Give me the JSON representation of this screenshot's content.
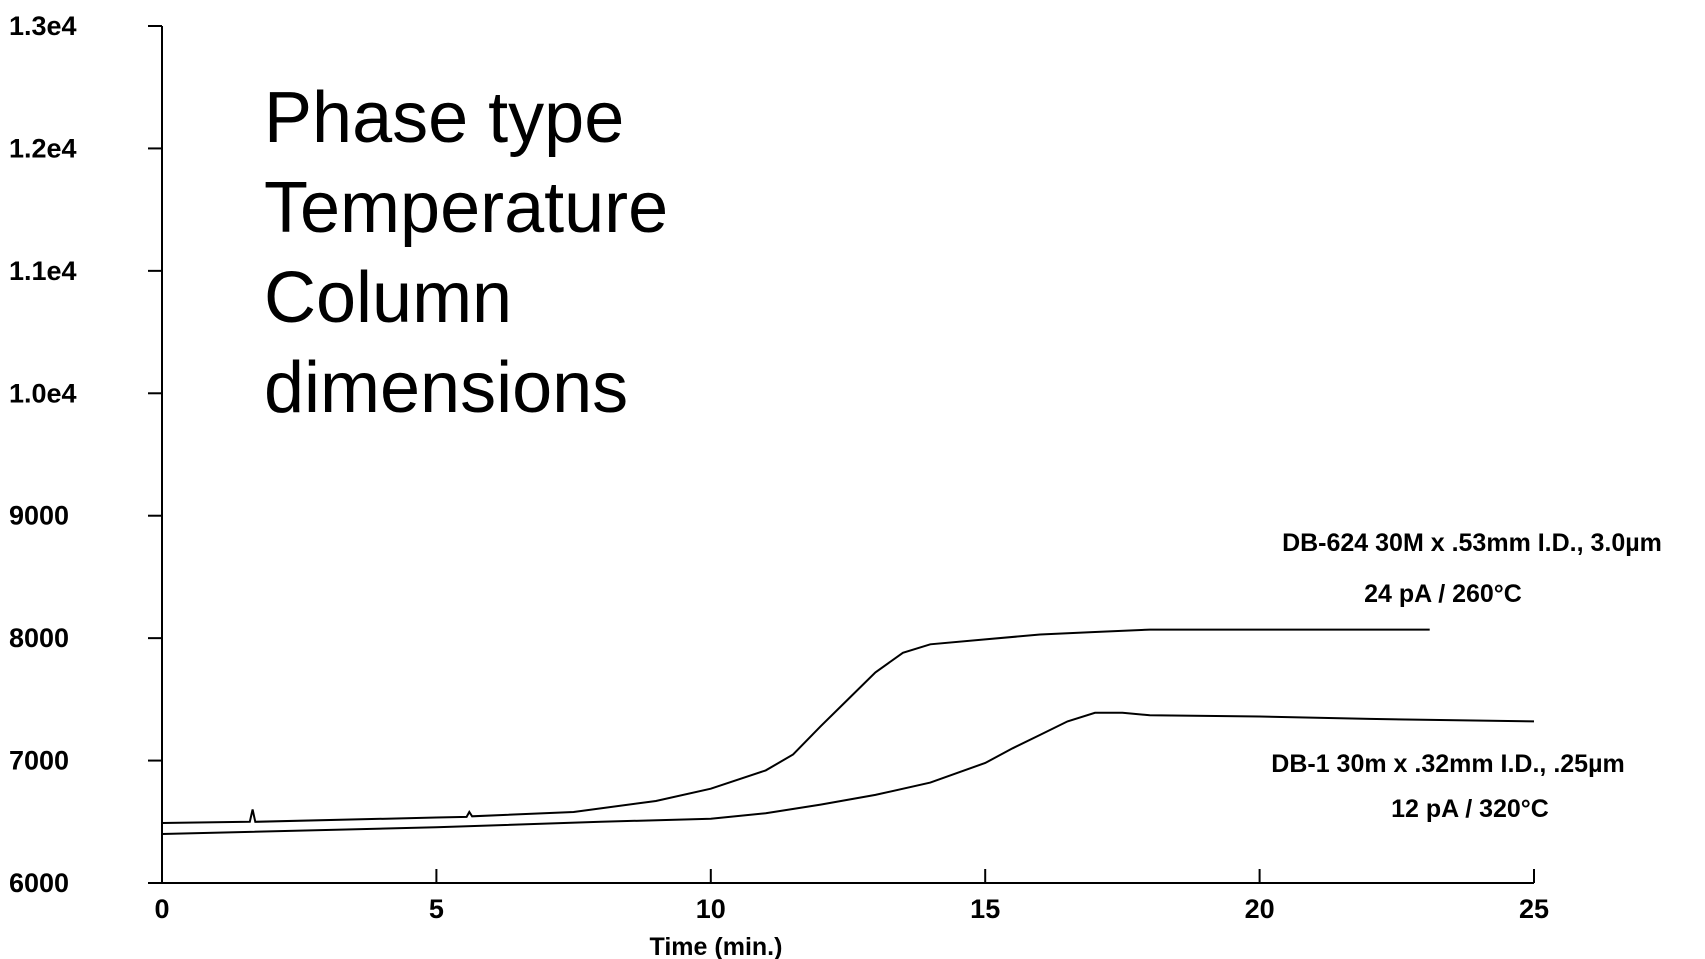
{
  "chart_data": {
    "type": "line",
    "xlabel": "Time (min.)",
    "xlim": [
      0,
      25
    ],
    "xticks": [
      0,
      5,
      10,
      15,
      20,
      25
    ],
    "ylim": [
      6000,
      13000
    ],
    "yticks": [
      6000,
      7000,
      8000,
      9000,
      {
        "value": 10000,
        "label": "1.0e4"
      },
      {
        "value": 11000,
        "label": "1.1e4"
      },
      {
        "value": 12000,
        "label": "1.2e4"
      },
      {
        "value": 13000,
        "label": "1.3e4"
      }
    ],
    "annotation_lines": [
      "Phase type",
      "Temperature",
      "Column",
      "dimensions"
    ],
    "series": [
      {
        "name": "DB-624 30M x .53mm I.D., 3.0µm",
        "note": "24 pA / 260°C",
        "color": "#000000",
        "x": [
          0,
          1.6,
          1.65,
          1.7,
          5,
          5.55,
          5.6,
          5.65,
          7.5,
          9,
          10,
          11,
          11.5,
          12,
          12.5,
          13,
          13.5,
          14,
          15,
          16,
          17,
          18,
          20,
          23.1
        ],
        "values": [
          6490,
          6500,
          6600,
          6500,
          6535,
          6540,
          6580,
          6545,
          6580,
          6670,
          6770,
          6920,
          7050,
          7280,
          7500,
          7720,
          7880,
          7950,
          7990,
          8030,
          8050,
          8070,
          8070,
          8070
        ]
      },
      {
        "name": "DB-1 30m x .32mm I.D., .25µm",
        "note": "12 pA / 320°C",
        "color": "#000000",
        "x": [
          0,
          5,
          8,
          10,
          11,
          12,
          13,
          14,
          15,
          15.5,
          16,
          16.5,
          17,
          17.5,
          18,
          20,
          22,
          25
        ],
        "values": [
          6400,
          6455,
          6500,
          6525,
          6570,
          6640,
          6720,
          6820,
          6980,
          7100,
          7210,
          7320,
          7390,
          7390,
          7370,
          7360,
          7340,
          7320
        ]
      }
    ]
  }
}
